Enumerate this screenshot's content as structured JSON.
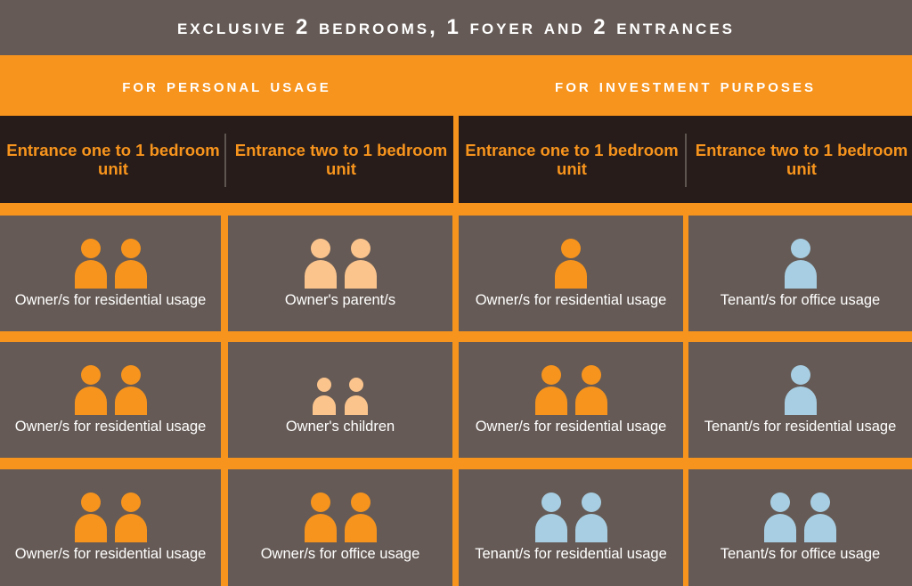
{
  "title": "EXCLUSIVE 2 BEDROOMS, 1 FOYER AND 2 ENTRANCES",
  "sections": [
    {
      "heading": "FOR PERSONAL USAGE",
      "entrances": [
        "Entrance one to 1 bedroom unit",
        "Entrance two to 1 bedroom unit"
      ]
    },
    {
      "heading": "FOR INVESTMENT PURPOSES",
      "entrances": [
        "Entrance one to 1 bedroom unit",
        "Entrance two to 1 bedroom unit"
      ]
    }
  ],
  "colors": {
    "owner": "#f7941d",
    "parent": "#fbc48d",
    "tenant": "#a7cee3"
  },
  "rows": [
    [
      {
        "label": "Owner/s for residential usage",
        "icon": "two-person-icon",
        "count": 2,
        "color": "owner",
        "size": "adult"
      },
      {
        "label": "Owner's parent/s",
        "icon": "two-person-icon",
        "count": 2,
        "color": "parent",
        "size": "adult"
      },
      {
        "label": "Owner/s for residential usage",
        "icon": "person-icon",
        "count": 1,
        "color": "owner",
        "size": "adult"
      },
      {
        "label": "Tenant/s for office usage",
        "icon": "person-icon",
        "count": 1,
        "color": "tenant",
        "size": "adult"
      }
    ],
    [
      {
        "label": "Owner/s for residential usage",
        "icon": "two-person-icon",
        "count": 2,
        "color": "owner",
        "size": "adult"
      },
      {
        "label": "Owner's children",
        "icon": "two-child-icon",
        "count": 2,
        "color": "parent",
        "size": "child"
      },
      {
        "label": "Owner/s for residential usage",
        "icon": "two-person-icon",
        "count": 2,
        "color": "owner",
        "size": "adult"
      },
      {
        "label": "Tenant/s for residential usage",
        "icon": "person-icon",
        "count": 1,
        "color": "tenant",
        "size": "adult"
      }
    ],
    [
      {
        "label": "Owner/s for residential usage",
        "icon": "two-person-icon",
        "count": 2,
        "color": "owner",
        "size": "adult"
      },
      {
        "label": "Owner/s for office usage",
        "icon": "two-person-icon",
        "count": 2,
        "color": "owner",
        "size": "adult"
      },
      {
        "label": "Tenant/s for residential usage",
        "icon": "two-person-icon",
        "count": 2,
        "color": "tenant",
        "size": "adult"
      },
      {
        "label": "Tenant/s for office usage",
        "icon": "two-person-icon",
        "count": 2,
        "color": "tenant",
        "size": "adult"
      }
    ]
  ]
}
